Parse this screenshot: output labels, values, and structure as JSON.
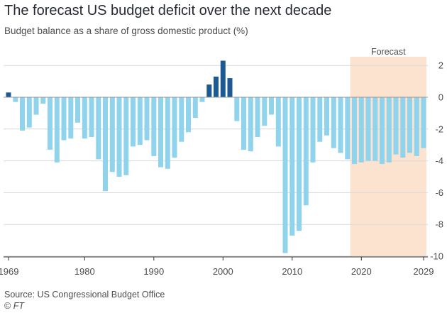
{
  "title": "The forecast US budget deficit over the next decade",
  "subtitle": "Budget balance as a share of gross domestic product (%)",
  "source": "Source: US Congressional Budget Office",
  "credit_symbol": "©",
  "credit_name": "FT",
  "colors": {
    "surplus": "#1d5a93",
    "deficit": "#8fd3ec",
    "forecast_band": "#fbe3cf",
    "gridline": "#d9d9d9",
    "zero_line": "#999999",
    "text": "#4d4d4d",
    "title": "#262a33"
  },
  "chart_data": {
    "type": "bar",
    "title": "The forecast US budget deficit over the next decade",
    "subtitle": "Budget balance as a share of gross domestic product (%)",
    "xlabel": "",
    "ylabel": "",
    "y_axis_side": "right",
    "ylim": [
      -10,
      2.5
    ],
    "y_ticks": [
      2,
      0,
      -2,
      -4,
      -6,
      -8,
      -10
    ],
    "x_ticks": [
      1969,
      1980,
      1990,
      2000,
      2010,
      2020,
      2029
    ],
    "grid": true,
    "forecast_region": {
      "label": "Forecast",
      "start_year": 2019,
      "end_year": 2029
    },
    "years": [
      1969,
      1970,
      1971,
      1972,
      1973,
      1974,
      1975,
      1976,
      1977,
      1978,
      1979,
      1980,
      1981,
      1982,
      1983,
      1984,
      1985,
      1986,
      1987,
      1988,
      1989,
      1990,
      1991,
      1992,
      1993,
      1994,
      1995,
      1996,
      1997,
      1998,
      1999,
      2000,
      2001,
      2002,
      2003,
      2004,
      2005,
      2006,
      2007,
      2008,
      2009,
      2010,
      2011,
      2012,
      2013,
      2014,
      2015,
      2016,
      2017,
      2018,
      2019,
      2020,
      2021,
      2022,
      2023,
      2024,
      2025,
      2026,
      2027,
      2028,
      2029
    ],
    "values": [
      0.3,
      -0.3,
      -2.1,
      -1.9,
      -1.1,
      -0.4,
      -3.3,
      -4.1,
      -2.7,
      -2.6,
      -1.6,
      -2.6,
      -2.5,
      -3.9,
      -5.9,
      -4.7,
      -5.0,
      -4.9,
      -3.1,
      -3.0,
      -2.7,
      -3.7,
      -4.4,
      -4.5,
      -3.8,
      -2.8,
      -2.2,
      -1.3,
      -0.3,
      0.8,
      1.3,
      2.3,
      1.2,
      -1.5,
      -3.3,
      -3.4,
      -2.5,
      -1.8,
      -1.1,
      -3.1,
      -9.8,
      -8.7,
      -8.4,
      -6.8,
      -4.1,
      -2.8,
      -2.4,
      -3.2,
      -3.5,
      -3.9,
      -4.2,
      -4.1,
      -4.0,
      -4.0,
      -4.2,
      -4.1,
      -3.6,
      -3.8,
      -3.5,
      -3.7,
      -3.2
    ]
  }
}
